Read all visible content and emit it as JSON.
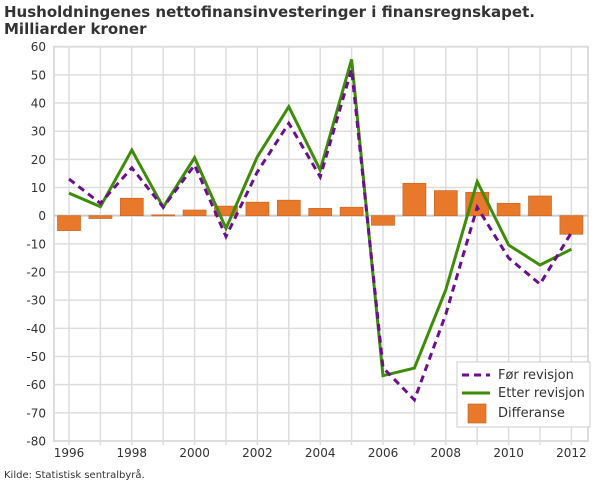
{
  "chart_data": {
    "type": "bar+line",
    "title": "Husholdningenes nettofinansinvesteringer i finansregnskapet.",
    "subtitle": "Milliarder kroner",
    "source": "Kilde: Statistisk sentralbyrå.",
    "x": [
      1996,
      1997,
      1998,
      1999,
      2000,
      2001,
      2002,
      2003,
      2004,
      2005,
      2006,
      2007,
      2008,
      2009,
      2010,
      2011,
      2012
    ],
    "x_tick_labels": [
      "1996",
      "1998",
      "2000",
      "2002",
      "2004",
      "2006",
      "2008",
      "2010",
      "2012"
    ],
    "ylim": [
      -80,
      60
    ],
    "y_ticks": [
      60,
      50,
      40,
      30,
      20,
      10,
      0,
      -10,
      -20,
      -30,
      -40,
      -50,
      -60,
      -70,
      -80
    ],
    "grid": true,
    "legend_position": "bottom-right",
    "series": [
      {
        "name": "Før revisjon",
        "type": "line",
        "style": "dashed",
        "color": "#6a0f8e",
        "values": [
          13,
          4.4,
          17,
          3,
          18,
          -7.4,
          15.6,
          32.8,
          13.8,
          52,
          -54,
          -65.4,
          -35,
          3,
          -15,
          -24.3,
          -6
        ]
      },
      {
        "name": "Etter revisjon",
        "type": "line",
        "style": "solid",
        "color": "#3f8b0a",
        "values": [
          8,
          3.2,
          23.3,
          3,
          20.6,
          -4.5,
          21,
          38.7,
          16.2,
          55.5,
          -56.8,
          -54.1,
          -26.3,
          12.1,
          -10.4,
          -17.5,
          -11.9
        ]
      },
      {
        "name": "Differanse",
        "type": "bar",
        "color": "#e8782a",
        "values": [
          -5.3,
          -1,
          6.2,
          0.3,
          2,
          3.4,
          4.8,
          5.5,
          2.6,
          3,
          -3.4,
          11.5,
          8.9,
          8.3,
          4.4,
          7,
          -6.6
        ]
      }
    ]
  }
}
